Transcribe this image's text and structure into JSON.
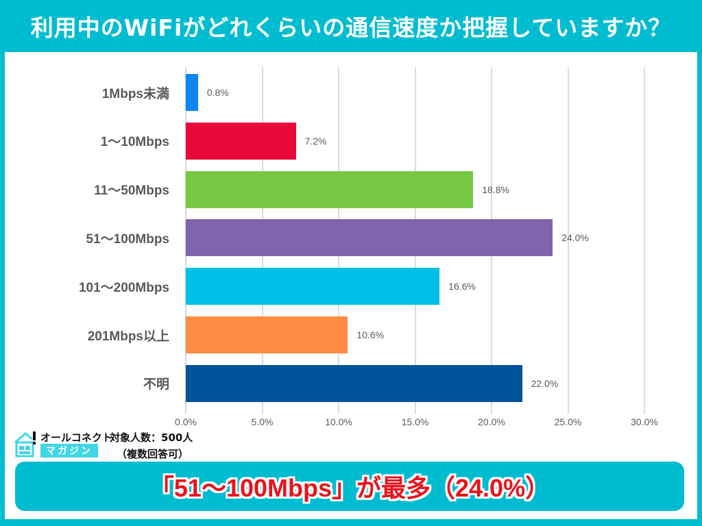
{
  "header": {
    "title": "利用中のWiFiがどれくらいの通信速度か把握していますか？"
  },
  "footer": {
    "logo_top": "オールコネクト",
    "logo_bottom": "マガジン",
    "sample_line1": "対象人数：500人",
    "sample_line2": "（複数回答可）",
    "callout": "「51〜100Mbps」が最多（24.0%）"
  },
  "colors": {
    "frame": "#00BCD0",
    "callout_text": "#E8131B"
  },
  "chart_data": {
    "type": "bar",
    "orientation": "horizontal",
    "title": "利用中のWiFiがどれくらいの通信速度か把握していますか？",
    "xlabel": "",
    "ylabel": "",
    "xlim": [
      0,
      30
    ],
    "grid": true,
    "categories": [
      "1Mbps未満",
      "1〜10Mbps",
      "11〜50Mbps",
      "51〜100Mbps",
      "101〜200Mbps",
      "201Mbps以上",
      "不明"
    ],
    "values": [
      0.8,
      7.2,
      18.8,
      24.0,
      16.6,
      10.6,
      22.0
    ],
    "value_labels": [
      "0.8%",
      "7.2%",
      "18.8%",
      "24.0%",
      "16.6%",
      "10.6%",
      "22.0%"
    ],
    "bar_colors": [
      "#0A87F5",
      "#E8083A",
      "#76C842",
      "#8064AC",
      "#00BFE6",
      "#FF8C42",
      "#00529B"
    ],
    "x_ticks": [
      "0.0%",
      "5.0%",
      "10.0%",
      "15.0%",
      "20.0%",
      "25.0%",
      "30.0%"
    ],
    "annotation": "「51〜100Mbps」が最多（24.0%）",
    "sample_size": "対象人数：500人",
    "note": "（複数回答可）"
  }
}
